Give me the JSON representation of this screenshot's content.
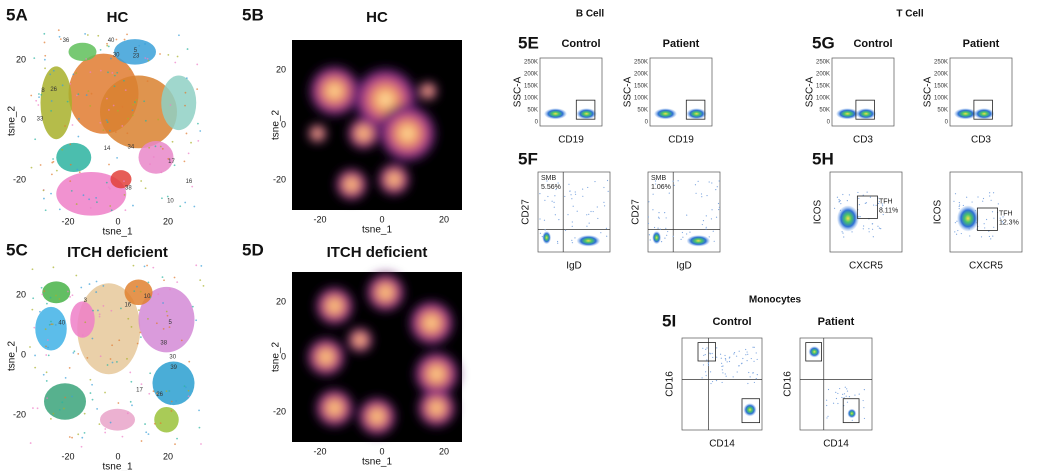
{
  "figure": {
    "tsne_panels": [
      {
        "label": "5A",
        "title": "HC",
        "x_axis": "tsne_1",
        "y_axis": "tsne_2",
        "x_ticks": [
          -20,
          0,
          20
        ],
        "y_ticks": [
          20,
          0,
          -20
        ],
        "clusters": [
          "34",
          "30",
          "33",
          "40",
          "23",
          "26",
          "14",
          "16",
          "36",
          "10",
          "17",
          "38",
          "8",
          "5"
        ]
      },
      {
        "label": "5C",
        "title": "ITCH deficient",
        "x_axis": "tsne_1",
        "y_axis": "tsne_2",
        "x_ticks": [
          -20,
          0,
          20
        ],
        "y_ticks": [
          20,
          0,
          -20
        ],
        "clusters": [
          "39",
          "3",
          "40",
          "17",
          "26",
          "10",
          "30",
          "38",
          "16",
          "5"
        ]
      }
    ],
    "density_panels": [
      {
        "label": "5B",
        "title": "HC",
        "x_axis": "tsne_1",
        "y_axis": "tsne_2",
        "x_ticks": [
          -20,
          0,
          20
        ],
        "y_ticks": [
          20,
          0,
          -20
        ]
      },
      {
        "label": "5D",
        "title": "ITCH deficient",
        "x_axis": "tsne_1",
        "y_axis": "tsne_2",
        "x_ticks": [
          -20,
          0,
          20
        ],
        "y_ticks": [
          20,
          0,
          -20
        ]
      }
    ],
    "sections": {
      "b_cell": "B Cell",
      "t_cell": "T Cell",
      "monocytes": "Monocytes"
    },
    "flow_panels": [
      {
        "label": "5E",
        "x_axis": "CD19",
        "y_axis": "SSC-A",
        "y_ticks": [
          "250K",
          "200K",
          "150K",
          "100K",
          "50K",
          "0"
        ],
        "plots": [
          {
            "group": "Control"
          },
          {
            "group": "Patient"
          }
        ]
      },
      {
        "label": "5F",
        "x_axis": "IgD",
        "y_axis": "CD27",
        "plots": [
          {
            "gate": {
              "name": "SMB",
              "percent": "5.56%"
            }
          },
          {
            "gate": {
              "name": "SMB",
              "percent": "1.06%"
            }
          }
        ]
      },
      {
        "label": "5G",
        "x_axis": "CD3",
        "y_axis": "SSC-A",
        "y_ticks": [
          "250K",
          "200K",
          "150K",
          "100K",
          "50K",
          "0"
        ],
        "plots": [
          {
            "group": "Control"
          },
          {
            "group": "Patient"
          }
        ]
      },
      {
        "label": "5H",
        "x_axis": "CXCR5",
        "y_axis": "ICOS",
        "plots": [
          {
            "gate": {
              "name": "TFH",
              "percent": "8.11%"
            }
          },
          {
            "gate": {
              "name": "TFH",
              "percent": "12.3%"
            }
          }
        ]
      },
      {
        "label": "5I",
        "x_axis": "CD14",
        "y_axis": "CD16",
        "plots": [
          {
            "group": "Control"
          },
          {
            "group": "Patient"
          }
        ]
      }
    ]
  }
}
